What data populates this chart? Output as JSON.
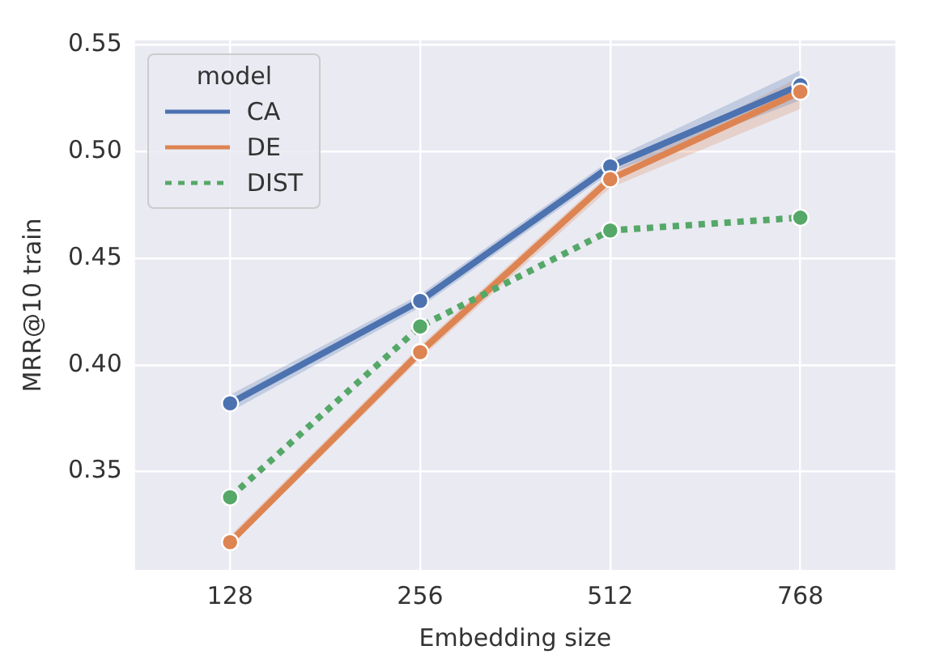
{
  "chart_data": {
    "type": "line",
    "xlabel": "Embedding size",
    "ylabel": "MRR@10 train",
    "legend_title": "model",
    "categories": [
      "128",
      "256",
      "512",
      "768"
    ],
    "series": [
      {
        "name": "CA",
        "color": "#4c72b0",
        "values": [
          0.382,
          0.43,
          0.493,
          0.531
        ],
        "lower": [
          0.378,
          0.427,
          0.49,
          0.524
        ],
        "upper": [
          0.386,
          0.433,
          0.496,
          0.538
        ]
      },
      {
        "name": "DE",
        "color": "#dd8452",
        "values": [
          0.317,
          0.406,
          0.487,
          0.528
        ],
        "lower": [
          0.315,
          0.403,
          0.483,
          0.52
        ],
        "upper": [
          0.32,
          0.409,
          0.49,
          0.535
        ]
      },
      {
        "name": "DIST",
        "color": "#55a868",
        "values": [
          0.338,
          0.418,
          0.463,
          0.469
        ],
        "line_style": "dotted"
      }
    ],
    "ylim": [
      0.304,
      0.552
    ],
    "yticks": [
      0.35,
      {
        "value": 0.4,
        "label": "0.40"
      },
      0.45,
      {
        "value": 0.5,
        "label": "0.50"
      },
      0.55
    ],
    "grid": true,
    "legend": "top left",
    "marker": "circle"
  }
}
